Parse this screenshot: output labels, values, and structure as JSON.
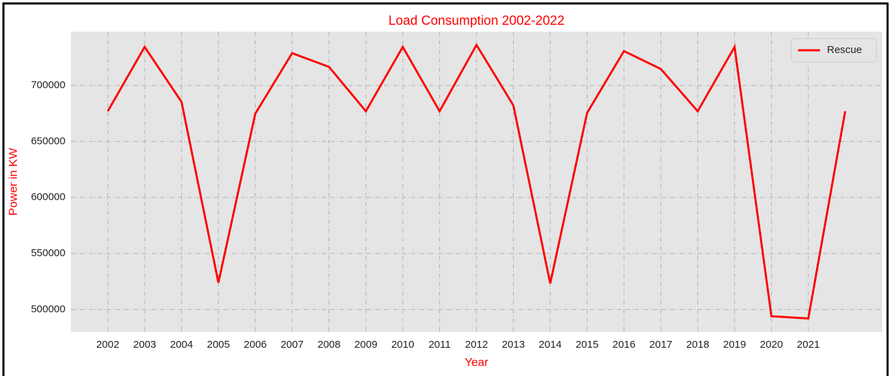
{
  "chart_data": {
    "type": "line",
    "title": "Load Consumption 2002-2022",
    "x_label": "Year",
    "y_label": "Power in KW",
    "x": [
      2002,
      2003,
      2004,
      2005,
      2006,
      2007,
      2008,
      2009,
      2010,
      2011,
      2012,
      2013,
      2014,
      2015,
      2016,
      2017,
      2018,
      2019,
      2020,
      2021,
      2022
    ],
    "series": [
      {
        "name": "Rescue",
        "color": "#ff0000",
        "values": [
          677000,
          734400,
          685300,
          524000,
          674800,
          728800,
          716600,
          677000,
          734400,
          677000,
          736200,
          682200,
          523300,
          675500,
          730700,
          714700,
          677000,
          734400,
          494000,
          492000,
          677000
        ]
      }
    ],
    "xlim": [
      2001,
      2023
    ],
    "xticks": [
      2002,
      2003,
      2004,
      2005,
      2006,
      2007,
      2008,
      2009,
      2010,
      2011,
      2012,
      2013,
      2014,
      2015,
      2016,
      2017,
      2018,
      2019,
      2020,
      2021
    ],
    "ylim": [
      480000,
      748000
    ],
    "yticks": [
      500000,
      550000,
      600000,
      650000,
      700000
    ],
    "grid": true,
    "legend": "upper right",
    "text_color": "#ff0000"
  }
}
